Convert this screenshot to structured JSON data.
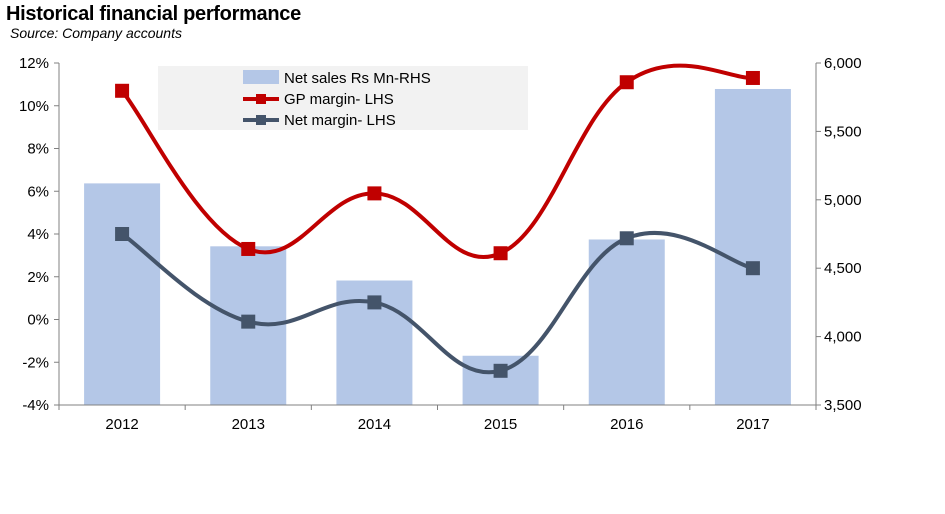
{
  "header": {
    "title": "Historical financial performance",
    "source": "Source: Company accounts"
  },
  "colors": {
    "bars": "#b4c7e7",
    "gp": "#c00000",
    "net": "#44546a",
    "axis": "#808080",
    "legend_bg": "#f2f2f2"
  },
  "chart_data": {
    "type": "bar+line",
    "title": "Historical financial performance",
    "categories": [
      "2012",
      "2013",
      "2014",
      "2015",
      "2016",
      "2017"
    ],
    "y_left": {
      "range": [
        -4,
        12
      ],
      "ticks": [
        12,
        10,
        8,
        6,
        4,
        2,
        0,
        -2,
        -4
      ],
      "tick_labels": [
        "12%",
        "10%",
        "8%",
        "6%",
        "4%",
        "2%",
        "0%",
        "-2%",
        "-4%"
      ]
    },
    "y_right": {
      "range": [
        3500,
        6000
      ],
      "ticks": [
        6000,
        5500,
        5000,
        4500,
        4000,
        3500
      ],
      "tick_labels": [
        "6,000",
        "5,500",
        "5,000",
        "4,500",
        "4,000",
        "3,500"
      ]
    },
    "series": [
      {
        "name": "Net sales Rs Mn-RHS",
        "type": "bar",
        "axis": "right",
        "values": [
          5120,
          4660,
          4410,
          3860,
          4710,
          5810
        ]
      },
      {
        "name": "GP margin- LHS",
        "type": "line",
        "axis": "left",
        "values": [
          10.7,
          3.3,
          5.9,
          3.1,
          11.1,
          11.3
        ]
      },
      {
        "name": "Net margin- LHS",
        "type": "line",
        "axis": "left",
        "values": [
          4.0,
          -0.1,
          0.8,
          -2.4,
          3.8,
          2.4
        ]
      }
    ],
    "legend": [
      "Net sales Rs Mn-RHS",
      "GP margin- LHS",
      "Net margin- LHS"
    ]
  }
}
